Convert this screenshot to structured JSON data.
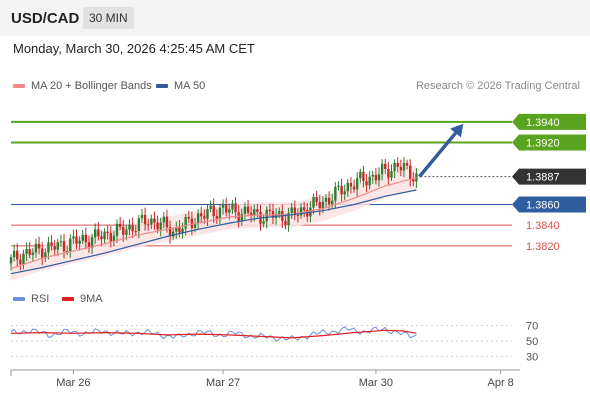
{
  "header": {
    "pair": "USD/CAD",
    "timeframe": "30 MIN"
  },
  "datetime": "Monday, March 30, 2026 4:25:45 AM CET",
  "legend_top": [
    {
      "label": "MA 20 + Bollinger Bands",
      "color": "#f08a8a"
    },
    {
      "label": "MA 50",
      "color": "#2f5d9e"
    }
  ],
  "copyright": "Research © 2026 Trading Central",
  "legend_bottom": [
    {
      "label": "RSI",
      "color": "#6d8fd6"
    },
    {
      "label": "9MA",
      "color": "#e02020"
    }
  ],
  "colors": {
    "resistance": "#5aa31e",
    "support": "#2f5d9e",
    "minor_support": "#d9534f",
    "arrow": "#2f5d9e",
    "up_candle": "#2e7d32",
    "down_candle": "#c62828",
    "band_fill": "#fbe2e2"
  },
  "chart_data": {
    "type": "candlestick",
    "price_ylim": [
      1.3785,
      1.3965
    ],
    "last_price": "1.3887",
    "levels": [
      {
        "label": "1.3940",
        "value": 1.394,
        "kind": "resistance"
      },
      {
        "label": "1.3920",
        "value": 1.392,
        "kind": "resistance"
      },
      {
        "label": "1.3860",
        "value": 1.386,
        "kind": "support"
      },
      {
        "label": "1.3840",
        "value": 1.384,
        "kind": "minor_support"
      },
      {
        "label": "1.3820",
        "value": 1.382,
        "kind": "minor_support"
      }
    ],
    "close_path": [
      [
        0,
        1.3806
      ],
      [
        4,
        1.3812
      ],
      [
        8,
        1.3815
      ],
      [
        12,
        1.3818
      ],
      [
        16,
        1.382
      ],
      [
        20,
        1.3824
      ],
      [
        24,
        1.3826
      ],
      [
        28,
        1.3829
      ],
      [
        32,
        1.3832
      ],
      [
        36,
        1.3835
      ],
      [
        40,
        1.384
      ],
      [
        44,
        1.3845
      ],
      [
        48,
        1.3841
      ],
      [
        52,
        1.3834
      ],
      [
        56,
        1.384
      ],
      [
        60,
        1.3848
      ],
      [
        64,
        1.3852
      ],
      [
        68,
        1.3856
      ],
      [
        72,
        1.3853
      ],
      [
        76,
        1.3852
      ],
      [
        80,
        1.3849
      ],
      [
        84,
        1.385
      ],
      [
        88,
        1.3848
      ],
      [
        92,
        1.3852
      ],
      [
        96,
        1.3858
      ],
      [
        100,
        1.3862
      ],
      [
        104,
        1.387
      ],
      [
        108,
        1.3878
      ],
      [
        112,
        1.3883
      ],
      [
        116,
        1.3887
      ],
      [
        120,
        1.3892
      ],
      [
        124,
        1.3898
      ],
      [
        127,
        1.3892
      ],
      [
        130,
        1.3887
      ]
    ],
    "ma20": [
      [
        0,
        1.3798
      ],
      [
        10,
        1.3808
      ],
      [
        20,
        1.3815
      ],
      [
        30,
        1.3822
      ],
      [
        40,
        1.383
      ],
      [
        50,
        1.3836
      ],
      [
        60,
        1.3842
      ],
      [
        70,
        1.3848
      ],
      [
        80,
        1.385
      ],
      [
        90,
        1.385
      ],
      [
        100,
        1.3856
      ],
      [
        110,
        1.3866
      ],
      [
        120,
        1.3878
      ],
      [
        130,
        1.3886
      ]
    ],
    "ma50": [
      [
        0,
        1.3793
      ],
      [
        10,
        1.3799
      ],
      [
        20,
        1.3806
      ],
      [
        30,
        1.3813
      ],
      [
        40,
        1.3821
      ],
      [
        50,
        1.3829
      ],
      [
        60,
        1.3836
      ],
      [
        70,
        1.3842
      ],
      [
        80,
        1.3847
      ],
      [
        90,
        1.385
      ],
      [
        100,
        1.3854
      ],
      [
        110,
        1.386
      ],
      [
        120,
        1.3868
      ],
      [
        130,
        1.3874
      ]
    ],
    "band_width": 0.0012,
    "projection": {
      "from": [
        130,
        1.3887
      ],
      "to": [
        145,
        1.394
      ]
    },
    "rsi": {
      "ylim": [
        20,
        80
      ],
      "ticks": [
        "70",
        "50",
        "30"
      ],
      "tick_values": [
        70,
        50,
        30
      ],
      "rsi_path": [
        [
          0,
          60
        ],
        [
          6,
          64
        ],
        [
          12,
          58
        ],
        [
          18,
          62
        ],
        [
          24,
          60
        ],
        [
          30,
          63
        ],
        [
          36,
          59
        ],
        [
          42,
          62
        ],
        [
          48,
          58
        ],
        [
          54,
          55
        ],
        [
          60,
          62
        ],
        [
          66,
          58
        ],
        [
          72,
          60
        ],
        [
          78,
          56
        ],
        [
          84,
          55
        ],
        [
          90,
          52
        ],
        [
          96,
          58
        ],
        [
          102,
          62
        ],
        [
          108,
          65
        ],
        [
          114,
          62
        ],
        [
          120,
          66
        ],
        [
          126,
          58
        ],
        [
          130,
          57
        ]
      ],
      "ma9_path": [
        [
          0,
          60
        ],
        [
          10,
          61
        ],
        [
          20,
          60
        ],
        [
          30,
          61
        ],
        [
          40,
          60
        ],
        [
          50,
          58
        ],
        [
          60,
          59
        ],
        [
          70,
          58
        ],
        [
          80,
          56
        ],
        [
          90,
          54
        ],
        [
          100,
          57
        ],
        [
          110,
          61
        ],
        [
          120,
          64
        ],
        [
          126,
          63
        ],
        [
          130,
          60
        ]
      ]
    },
    "x_labels": [
      {
        "label": "Mar 26",
        "index": 20
      },
      {
        "label": "Mar 27",
        "index": 68
      },
      {
        "label": "Mar 30",
        "index": 117
      },
      {
        "label": "Apr 8",
        "index": 157
      }
    ],
    "x_range": [
      0,
      160
    ]
  }
}
